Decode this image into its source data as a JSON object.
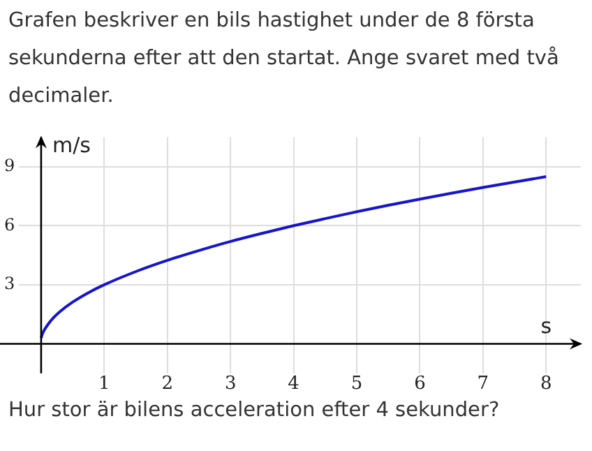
{
  "chart_data": {
    "type": "line",
    "title": "Grafen beskriver en bils hastighet under de 8 första sekunderna efter att den startat. Ange svaret med två decimaler.",
    "annotations": [
      "Hur stor är bilens acceleration efter 4 sekunder?"
    ],
    "xlabel": "s",
    "ylabel": "m/s",
    "x": [
      0,
      0.02,
      0.05,
      0.1,
      0.2,
      0.3,
      0.5,
      0.75,
      1,
      1.5,
      2,
      2.5,
      3,
      3.5,
      4,
      4.5,
      5,
      5.5,
      6,
      6.5,
      7,
      7.5,
      8
    ],
    "series": [
      {
        "color": "#1515d0",
        "values": [
          0.3,
          0.5,
          0.7,
          0.95,
          1.34,
          1.64,
          2.12,
          2.6,
          3,
          3.67,
          4.24,
          4.74,
          5.2,
          5.61,
          6,
          6.36,
          6.71,
          7.04,
          7.35,
          7.65,
          7.94,
          8.22,
          8.49
        ]
      }
    ],
    "xlim": [
      -0.35,
      8.55
    ],
    "ylim": [
      -1.5,
      10.5
    ],
    "xticks": [
      1,
      2,
      3,
      4,
      5,
      6,
      7,
      8
    ],
    "yticks": [
      3,
      6,
      9
    ],
    "grid": true,
    "legend": false,
    "marker": "none",
    "line_style": "solid"
  }
}
